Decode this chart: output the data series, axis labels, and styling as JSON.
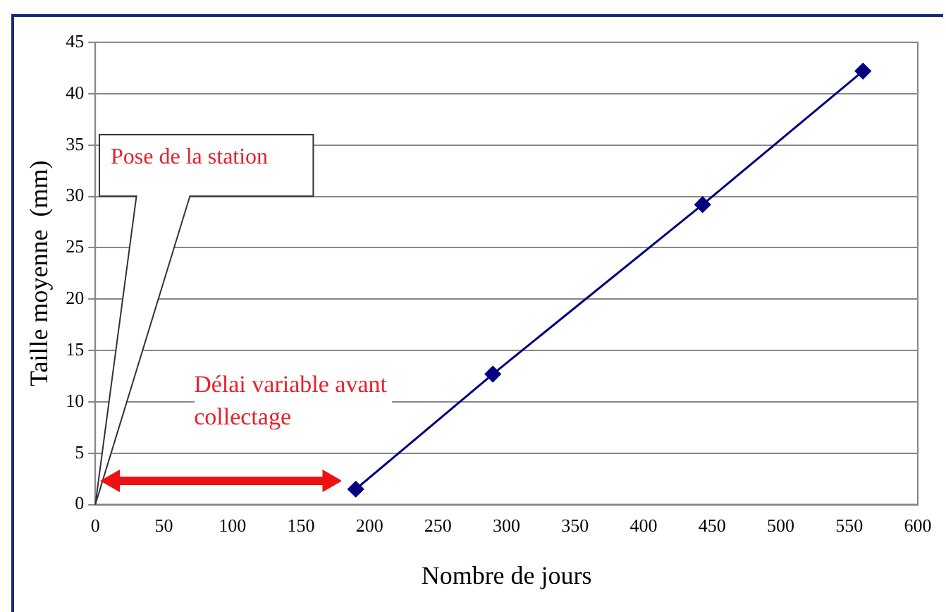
{
  "chart_data": {
    "type": "line",
    "xlabel": "Nombre de jours",
    "ylabel": "Taille moyenne  (mm)",
    "x": [
      190,
      290,
      443,
      560
    ],
    "series": [
      {
        "color": "#000080",
        "values": [
          1.5,
          12.7,
          29.2,
          42.2
        ]
      }
    ],
    "xlim": [
      0,
      600
    ],
    "xticks": [
      0,
      50,
      100,
      150,
      200,
      250,
      300,
      350,
      400,
      450,
      500,
      550,
      600
    ],
    "ylim": [
      0,
      45
    ],
    "yticks": [
      0,
      5,
      10,
      15,
      20,
      25,
      30,
      35,
      40,
      45
    ],
    "grid": "y",
    "legend": false,
    "marker": "diamond",
    "line_style": "solid",
    "annotations": [
      "Pose de la station",
      "Délai variable avant collectage"
    ]
  }
}
